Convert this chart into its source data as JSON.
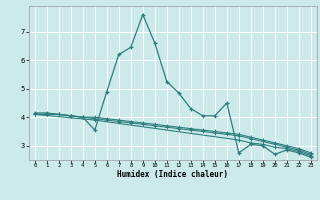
{
  "xlabel": "Humidex (Indice chaleur)",
  "background_color": "#cceaea",
  "grid_color": "#ffffff",
  "line_color": "#2e7d7d",
  "xlim": [
    -0.5,
    23.5
  ],
  "ylim": [
    2.5,
    7.9
  ],
  "xticks": [
    0,
    1,
    2,
    3,
    4,
    5,
    6,
    7,
    8,
    9,
    10,
    11,
    12,
    13,
    14,
    15,
    16,
    17,
    18,
    19,
    20,
    21,
    22,
    23
  ],
  "yticks": [
    3,
    4,
    5,
    6,
    7
  ],
  "line1_x": [
    0,
    1,
    2,
    3,
    4,
    5,
    6,
    7,
    8,
    9,
    10,
    11,
    12,
    13,
    14,
    15,
    16,
    17,
    18,
    19,
    20,
    21,
    22,
    23
  ],
  "line1_y": [
    4.15,
    4.15,
    4.1,
    4.05,
    4.0,
    3.55,
    4.9,
    6.2,
    6.45,
    7.6,
    6.6,
    5.25,
    4.85,
    4.3,
    4.05,
    4.05,
    4.5,
    2.75,
    3.05,
    3.0,
    2.7,
    2.85,
    2.75,
    2.6
  ],
  "line2_x": [
    0,
    1,
    2,
    3,
    4,
    5,
    6,
    7,
    8,
    9,
    10,
    11,
    12,
    13,
    14,
    15,
    16,
    17,
    18,
    19,
    20,
    21,
    22,
    23
  ],
  "line2_y": [
    4.1,
    4.1,
    4.1,
    4.05,
    4.0,
    3.95,
    3.9,
    3.85,
    3.8,
    3.75,
    3.7,
    3.65,
    3.6,
    3.55,
    3.5,
    3.45,
    3.4,
    3.35,
    3.25,
    3.15,
    3.05,
    2.95,
    2.85,
    2.7
  ],
  "line3_x": [
    0,
    1,
    2,
    3,
    4,
    5,
    6,
    7,
    8,
    9,
    10,
    11,
    12,
    13,
    14,
    15,
    16,
    17,
    18,
    19,
    20,
    21,
    22,
    23
  ],
  "line3_y": [
    4.1,
    4.1,
    4.1,
    4.05,
    4.0,
    4.0,
    3.95,
    3.9,
    3.85,
    3.8,
    3.75,
    3.7,
    3.65,
    3.6,
    3.55,
    3.5,
    3.45,
    3.4,
    3.3,
    3.2,
    3.1,
    3.0,
    2.9,
    2.75
  ],
  "line4_x": [
    0,
    5,
    17,
    18,
    19,
    20,
    21,
    22,
    23
  ],
  "line4_y": [
    4.1,
    3.9,
    3.2,
    3.1,
    3.05,
    2.95,
    2.9,
    2.8,
    2.65
  ]
}
